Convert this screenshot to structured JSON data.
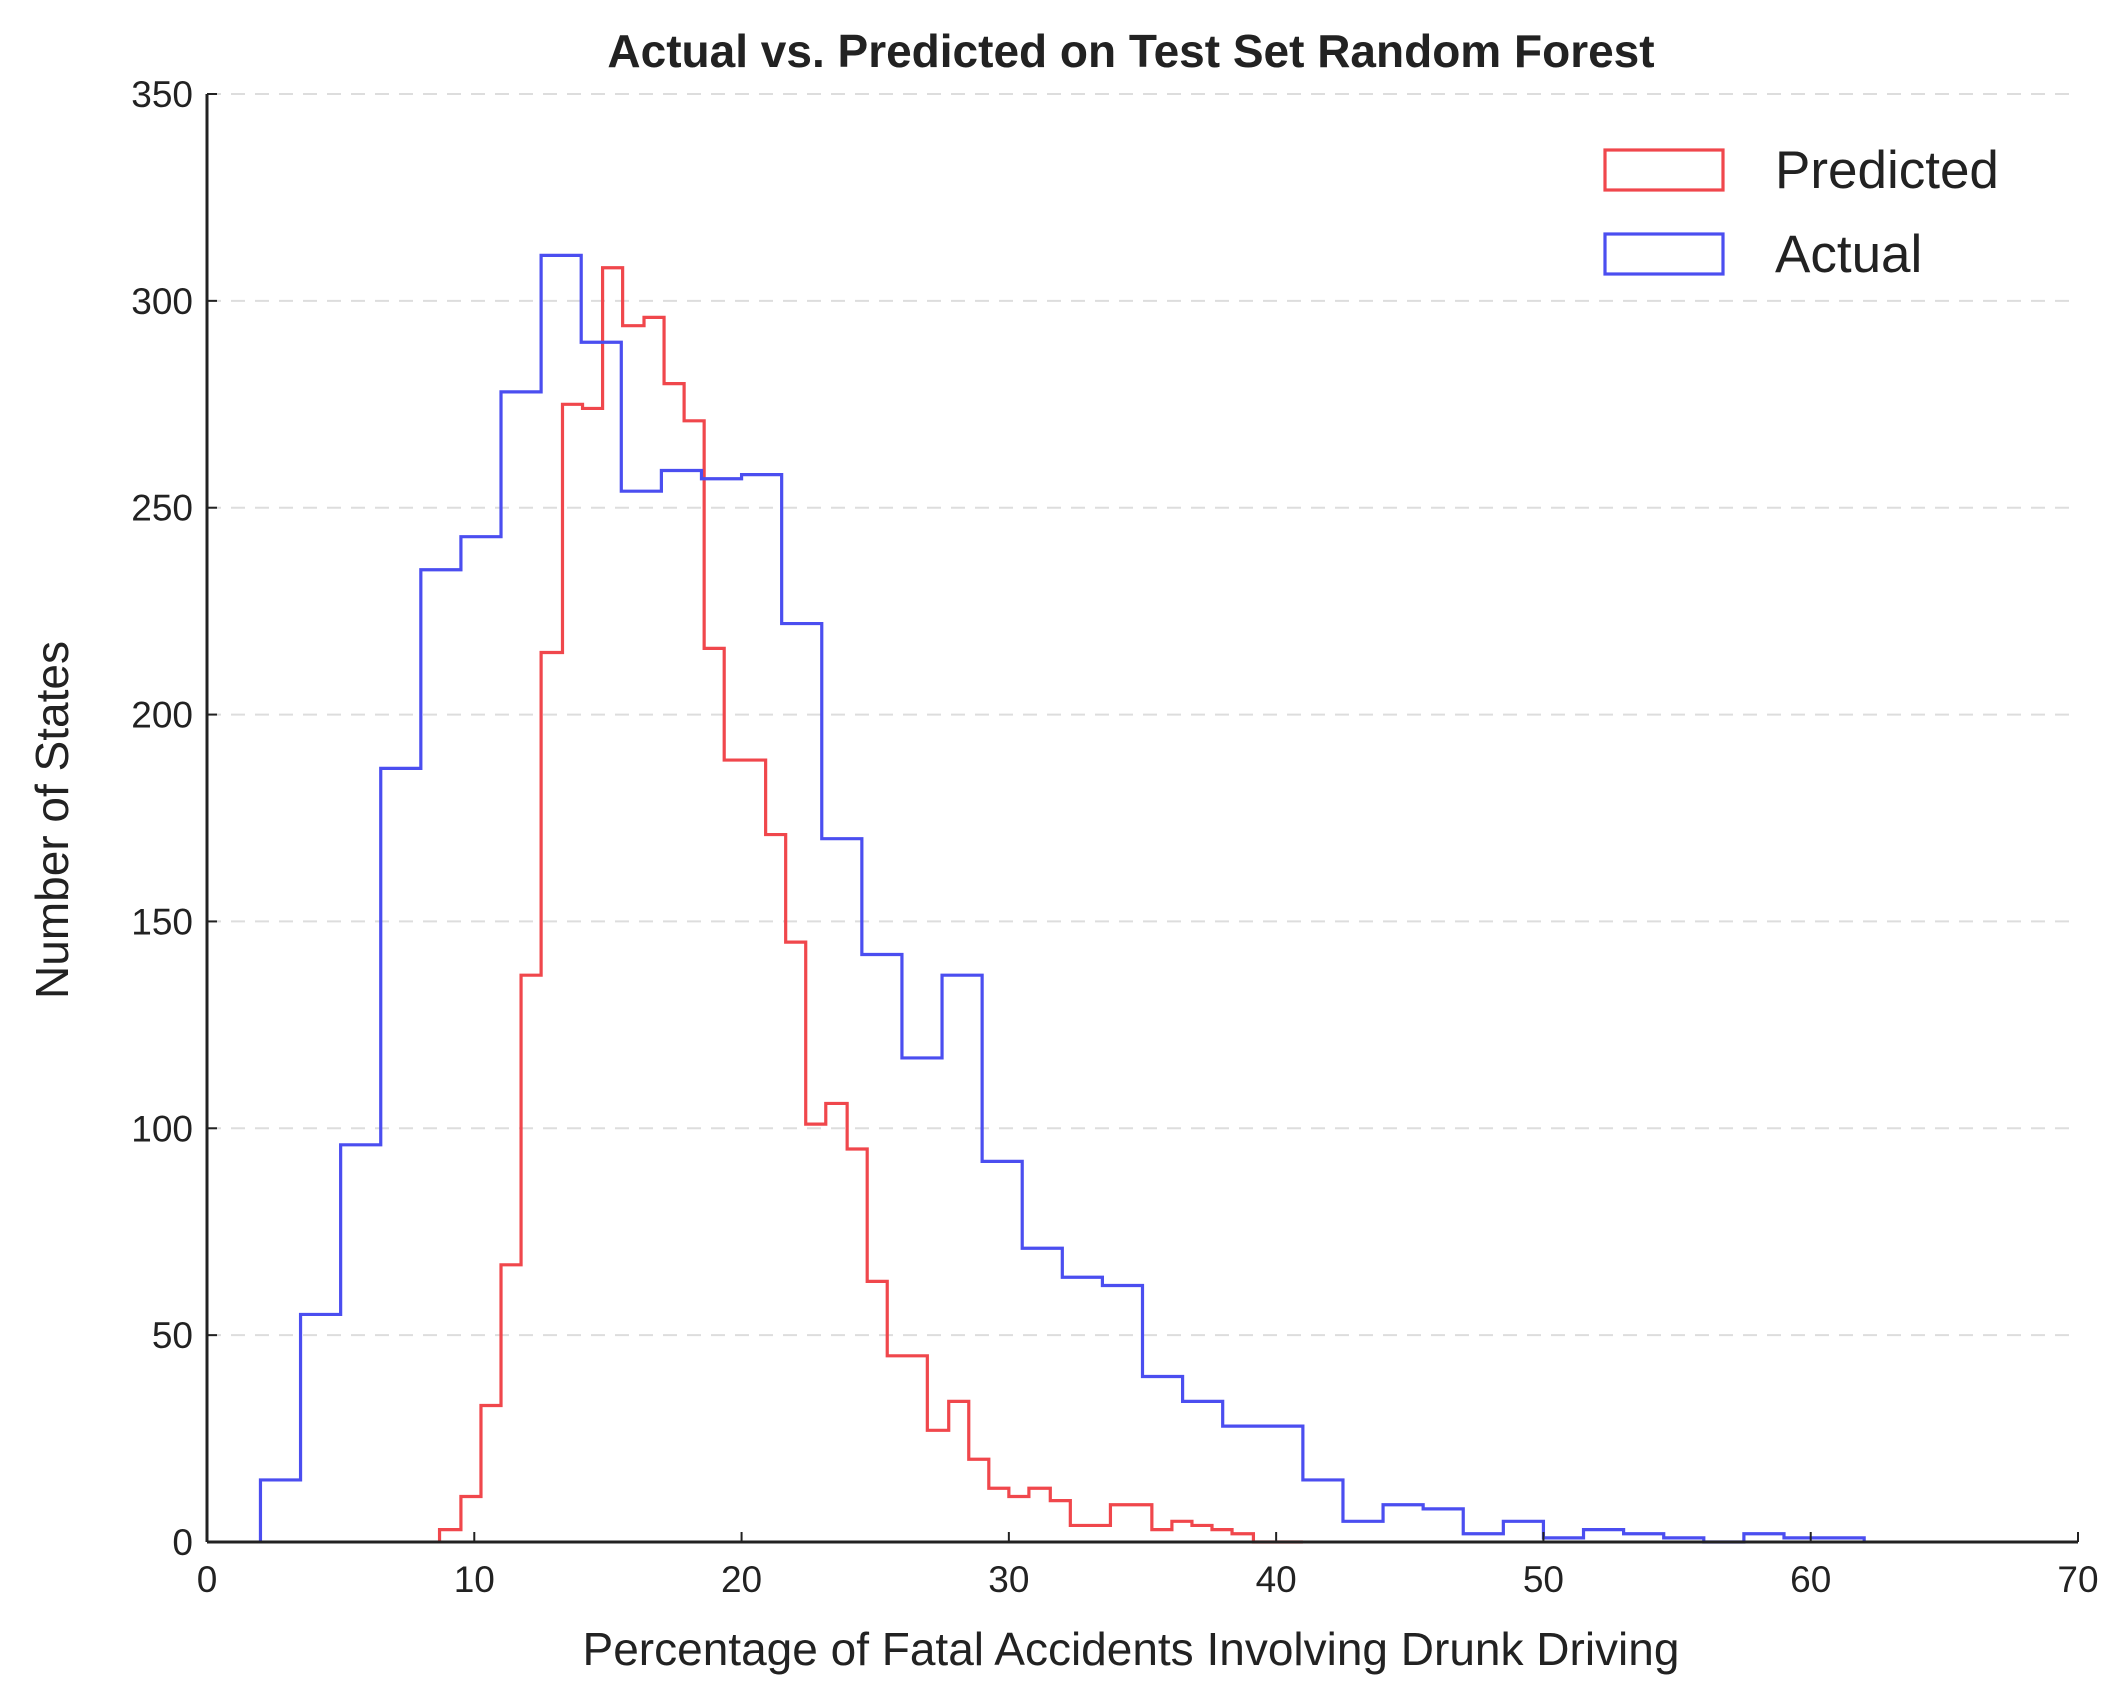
{
  "chart_data": {
    "type": "histogram-step",
    "title": "Actual vs. Predicted on Test Set Random Forest",
    "xlabel": "Percentage of Fatal Accidents Involving Drunk Driving",
    "ylabel": "Number of States",
    "xlim": [
      0,
      70
    ],
    "ylim": [
      0,
      350
    ],
    "xticks": [
      0,
      10,
      20,
      30,
      40,
      50,
      60,
      70
    ],
    "yticks": [
      0,
      50,
      100,
      150,
      200,
      250,
      300,
      350
    ],
    "grid": "y dashed",
    "legend_position": "top-right",
    "series": [
      {
        "name": "Predicted",
        "color": "#f0474c",
        "bin_edges": [
          8.7,
          9.5,
          10.25,
          11.0,
          11.75,
          12.5,
          13.3,
          14.05,
          14.8,
          15.55,
          16.35,
          17.1,
          17.85,
          18.6,
          19.35,
          20.15,
          20.9,
          21.65,
          22.4,
          23.15,
          23.95,
          24.7,
          25.45,
          26.2,
          26.95,
          27.75,
          28.5,
          29.25,
          30.0,
          30.75,
          31.55,
          32.3,
          33.05,
          33.8,
          34.55,
          35.35,
          36.1,
          36.85,
          37.6,
          38.35,
          39.15,
          39.9,
          40.65,
          41.0
        ],
        "counts": [
          3,
          11,
          33,
          67,
          137,
          215,
          275,
          274,
          308,
          294,
          296,
          280,
          271,
          216,
          189,
          189,
          171,
          145,
          101,
          106,
          95,
          63,
          45,
          45,
          27,
          34,
          20,
          13,
          11,
          13,
          10,
          4,
          4,
          9,
          9,
          3,
          5,
          4,
          3,
          2,
          0,
          0,
          0
        ]
      },
      {
        "name": "Actual",
        "color": "#4b4ef0",
        "bin_edges": [
          2.0,
          3.5,
          5.0,
          6.5,
          8.0,
          9.5,
          11.0,
          12.5,
          14.0,
          15.5,
          17.0,
          18.5,
          20.0,
          21.5,
          23.0,
          24.5,
          26.0,
          27.5,
          29.0,
          30.5,
          32.0,
          33.5,
          35.0,
          36.5,
          38.0,
          39.5,
          41.0,
          42.5,
          44.0,
          45.5,
          47.0,
          48.5,
          50.0,
          51.5,
          53.0,
          54.5,
          56.0,
          57.5,
          59.0,
          60.5,
          62.0
        ],
        "counts": [
          15,
          55,
          96,
          187,
          235,
          243,
          278,
          311,
          290,
          254,
          259,
          257,
          258,
          222,
          170,
          142,
          117,
          137,
          92,
          71,
          64,
          62,
          40,
          34,
          28,
          28,
          15,
          5,
          9,
          8,
          2,
          5,
          1,
          3,
          2,
          1,
          0,
          2,
          1,
          1
        ]
      }
    ]
  }
}
